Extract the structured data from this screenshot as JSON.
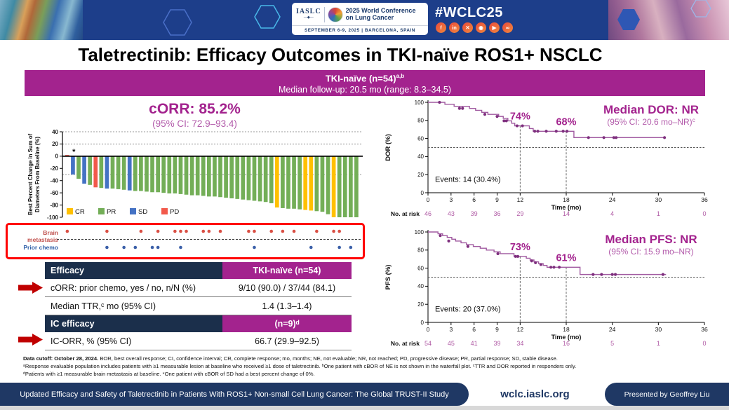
{
  "header": {
    "iaslc": "IASLC",
    "conference": "2025 World Conference on Lung Cancer",
    "date_location": "SEPTEMBER 6-9, 2025  |  BARCELONA, SPAIN",
    "hashtag": "#WCLC25",
    "social": [
      {
        "name": "facebook-icon",
        "glyph": "f"
      },
      {
        "name": "linkedin-icon",
        "glyph": "in"
      },
      {
        "name": "x-icon",
        "glyph": "✕"
      },
      {
        "name": "instagram-icon",
        "glyph": "◉"
      },
      {
        "name": "youtube-icon",
        "glyph": "▶"
      },
      {
        "name": "link-icon",
        "glyph": "∞"
      }
    ]
  },
  "title": "Taletrectinib: Efficacy Outcomes in TKI-naïve ROS1+ NSCLC",
  "banner": {
    "line1": "TKI-naïve (n=54)",
    "line1_sup": "a,b",
    "line2": "Median follow-up: 20.5 mo (range: 8.3–34.5)"
  },
  "colors": {
    "accent": "#A3238E",
    "navy_header": "#1B2F4B",
    "footer_navy": "#1F3864",
    "km_line": "#A05AA0",
    "km_censor": "#7E2F7E",
    "risk_text": "#B05BA5",
    "annotation_red": "#C00000",
    "box_red": "#FF0000"
  },
  "chart_data": [
    {
      "type": "bar",
      "name": "waterfall",
      "title": "cORR: 85.2%",
      "subtitle": "(95% CI: 72.9–93.4)",
      "ylabel_line1": "Best Percent Change in Sum of",
      "ylabel_line2": "Diameters From Baseline (%)",
      "ylim": [
        -100,
        40
      ],
      "yticks": [
        40,
        20,
        0,
        -20,
        -40,
        -60,
        -80,
        -100
      ],
      "ref_lines": [
        40,
        20,
        -30
      ],
      "star_note": "*",
      "legend": [
        {
          "label": "CR",
          "color": "#FFC000"
        },
        {
          "label": "PR",
          "color": "#73AE57"
        },
        {
          "label": "SD",
          "color": "#4472C4"
        },
        {
          "label": "PD",
          "color": "#F2594B"
        }
      ],
      "bars": [
        {
          "v": 2,
          "c": "PD"
        },
        {
          "v": -30,
          "c": "SD"
        },
        {
          "v": -37,
          "c": "PR"
        },
        {
          "v": -45,
          "c": "SD"
        },
        {
          "v": -47,
          "c": "PR"
        },
        {
          "v": -51,
          "c": "PD"
        },
        {
          "v": -52,
          "c": "PR"
        },
        {
          "v": -53,
          "c": "SD"
        },
        {
          "v": -53,
          "c": "PR"
        },
        {
          "v": -54,
          "c": "PR"
        },
        {
          "v": -55,
          "c": "PR"
        },
        {
          "v": -56,
          "c": "SD"
        },
        {
          "v": -57,
          "c": "PR"
        },
        {
          "v": -57,
          "c": "PR"
        },
        {
          "v": -58,
          "c": "PR"
        },
        {
          "v": -59,
          "c": "PR"
        },
        {
          "v": -59,
          "c": "PR"
        },
        {
          "v": -60,
          "c": "PR"
        },
        {
          "v": -61,
          "c": "PR"
        },
        {
          "v": -61,
          "c": "PR"
        },
        {
          "v": -62,
          "c": "PR"
        },
        {
          "v": -63,
          "c": "PR"
        },
        {
          "v": -64,
          "c": "PR"
        },
        {
          "v": -64,
          "c": "PR"
        },
        {
          "v": -65,
          "c": "PR"
        },
        {
          "v": -66,
          "c": "PR"
        },
        {
          "v": -66,
          "c": "PR"
        },
        {
          "v": -67,
          "c": "PR"
        },
        {
          "v": -68,
          "c": "PR"
        },
        {
          "v": -69,
          "c": "PR"
        },
        {
          "v": -70,
          "c": "PR"
        },
        {
          "v": -71,
          "c": "PR"
        },
        {
          "v": -72,
          "c": "PR"
        },
        {
          "v": -73,
          "c": "PR"
        },
        {
          "v": -74,
          "c": "PR"
        },
        {
          "v": -75,
          "c": "PR"
        },
        {
          "v": -77,
          "c": "PR"
        },
        {
          "v": -84,
          "c": "CR"
        },
        {
          "v": -85,
          "c": "PR"
        },
        {
          "v": -86,
          "c": "PR"
        },
        {
          "v": -86,
          "c": "PR"
        },
        {
          "v": -87,
          "c": "PR"
        },
        {
          "v": -88,
          "c": "CR"
        },
        {
          "v": -89,
          "c": "CR"
        },
        {
          "v": -90,
          "c": "PR"
        },
        {
          "v": -91,
          "c": "PR"
        },
        {
          "v": -95,
          "c": "PR"
        },
        {
          "v": -100,
          "c": "CR"
        },
        {
          "v": -100,
          "c": "PR"
        },
        {
          "v": -100,
          "c": "PR"
        },
        {
          "v": -100,
          "c": "PR"
        },
        {
          "v": -100,
          "c": "PR"
        }
      ]
    },
    {
      "type": "line",
      "name": "dor",
      "title": "Median DOR: NR",
      "subtitle": "(95% CI: 20.6 mo–NR)",
      "subtitle_sup": "c",
      "ylabel": "DOR (%)",
      "xlabel": "Time (mo)",
      "xlim": [
        0,
        36
      ],
      "ylim": [
        0,
        100
      ],
      "xticks": [
        0,
        3,
        6,
        9,
        12,
        18,
        24,
        30,
        36
      ],
      "yticks": [
        0,
        20,
        40,
        60,
        80,
        100
      ],
      "ref_y": 50,
      "callouts": [
        {
          "t": 12,
          "v": 74,
          "label": "74%"
        },
        {
          "t": 18,
          "v": 68,
          "label": "68%"
        }
      ],
      "events_label": "Events: 14 (30.4%)",
      "risk_label": "No. at risk",
      "risk": [
        46,
        43,
        39,
        36,
        29,
        14,
        4,
        1,
        0
      ],
      "steps": [
        [
          0,
          100
        ],
        [
          2.2,
          97.8
        ],
        [
          3.4,
          95.6
        ],
        [
          5.4,
          93.3
        ],
        [
          6.2,
          91.1
        ],
        [
          7,
          88.9
        ],
        [
          7.8,
          86.7
        ],
        [
          9.2,
          84.4
        ],
        [
          9.8,
          82.2
        ],
        [
          10.4,
          79.5
        ],
        [
          10.9,
          76.8
        ],
        [
          11.3,
          74
        ],
        [
          13.2,
          71
        ],
        [
          13.7,
          68
        ],
        [
          19,
          61
        ],
        [
          30.8,
          61
        ]
      ],
      "censors": [
        [
          1.5,
          100
        ],
        [
          4.1,
          93.3
        ],
        [
          4.5,
          93.3
        ],
        [
          7.4,
          86.7
        ],
        [
          9,
          84.4
        ],
        [
          9.9,
          79.5
        ],
        [
          10.2,
          79.5
        ],
        [
          11.6,
          74
        ],
        [
          12.3,
          74
        ],
        [
          13.9,
          68
        ],
        [
          14.3,
          68
        ],
        [
          15.4,
          68
        ],
        [
          16.7,
          68
        ],
        [
          17.6,
          68
        ],
        [
          18.1,
          68
        ],
        [
          20.9,
          61
        ],
        [
          22.9,
          61
        ],
        [
          24.2,
          61
        ],
        [
          24.5,
          61
        ],
        [
          30.8,
          61
        ]
      ]
    },
    {
      "type": "line",
      "name": "pfs",
      "title": "Median PFS: NR",
      "subtitle": "(95% CI: 15.9 mo–NR)",
      "subtitle_sup": "",
      "ylabel": "PFS (%)",
      "xlabel": "Time (mo)",
      "xlim": [
        0,
        36
      ],
      "ylim": [
        0,
        100
      ],
      "xticks": [
        0,
        3,
        6,
        9,
        12,
        18,
        24,
        30,
        36
      ],
      "yticks": [
        0,
        20,
        40,
        60,
        80,
        100
      ],
      "ref_y": 50,
      "callouts": [
        {
          "t": 12,
          "v": 73,
          "label": "73%"
        },
        {
          "t": 18,
          "v": 61,
          "label": "61%"
        }
      ],
      "events_label": "Events: 20 (37.0%)",
      "risk_label": "No. at risk",
      "risk": [
        54,
        45,
        41,
        39,
        34,
        16,
        5,
        1,
        0
      ],
      "steps": [
        [
          0,
          100
        ],
        [
          1.3,
          98
        ],
        [
          1.9,
          96
        ],
        [
          2.5,
          94
        ],
        [
          3.1,
          92
        ],
        [
          3.6,
          90
        ],
        [
          4.3,
          88
        ],
        [
          5,
          86
        ],
        [
          5.9,
          84
        ],
        [
          6.8,
          82
        ],
        [
          7.6,
          80
        ],
        [
          8.6,
          78
        ],
        [
          9.4,
          76
        ],
        [
          11.2,
          73
        ],
        [
          12.8,
          71
        ],
        [
          13.3,
          69
        ],
        [
          13.8,
          67
        ],
        [
          14.4,
          65
        ],
        [
          15,
          63
        ],
        [
          15.5,
          61
        ],
        [
          19.8,
          53
        ],
        [
          31,
          53
        ]
      ],
      "censors": [
        [
          1.6,
          96
        ],
        [
          2.7,
          90
        ],
        [
          5.2,
          84
        ],
        [
          9.1,
          76
        ],
        [
          11.4,
          73
        ],
        [
          11.7,
          73
        ],
        [
          13.5,
          68
        ],
        [
          14,
          66
        ],
        [
          14.7,
          64
        ],
        [
          16,
          61
        ],
        [
          16.4,
          61
        ],
        [
          17.1,
          61
        ],
        [
          21.5,
          53
        ],
        [
          22.6,
          53
        ],
        [
          24,
          53
        ],
        [
          24.4,
          53
        ],
        [
          30.6,
          53
        ]
      ]
    }
  ],
  "markers": {
    "brain_label": "Brain metastasis",
    "chemo_label": "Prior chemo",
    "brain_dots": [
      1,
      8,
      14,
      17,
      20,
      21,
      22,
      25,
      26,
      28,
      33,
      34,
      37,
      39,
      41,
      45,
      48,
      49
    ],
    "chemo_dots": [
      8,
      11,
      13,
      16,
      17,
      21,
      34,
      44,
      49,
      51
    ]
  },
  "table": {
    "rows": [
      {
        "type": "header",
        "label": "Efficacy",
        "value": "TKI-naïve (n=54)"
      },
      {
        "type": "data",
        "label": "cORR: prior chemo, yes / no, n/N (%)",
        "value": "9/10 (90.0) / 37/44 (84.1)"
      },
      {
        "type": "data",
        "label": "Median TTR,ᶜ mo (95% CI)",
        "value": "1.4 (1.3–1.4)"
      },
      {
        "type": "header",
        "label": "IC efficacy",
        "value": "(n=9)ᵈ"
      },
      {
        "type": "data",
        "label": "IC-ORR, % (95% CI)",
        "value": "66.7 (29.9–92.5)"
      }
    ]
  },
  "footnotes": {
    "line1_bold": "Data cutoff: October 28, 2024.",
    "line1_rest": " BOR, best overall response; CI, confidence interval; CR, complete response; mo, months; NE, not evaluable; NR, not reached; PD, progressive disease; PR, partial response; SD, stable disease.",
    "line2": "ᵃResponse evaluable population includes patients with ≥1 measurable lesion at baseline who received ≥1 dose of taletrectinib. ᵇOne patient with cBOR of NE is not shown in the waterfall plot. ᶜTTR and DOR reported in responders only.",
    "line3": "ᵈPatients with ≥1 measurable brain metastasis at baseline. *One patient with cBOR of SD had a best percent change of 0%."
  },
  "footer": {
    "left": "Updated Efficacy and Safety of Taletrectinib in Patients With ROS1+ Non-small Cell Lung Cancer: The Global TRUST-II Study",
    "center": "wclc.iaslc.org",
    "right": "Presented by Geoffrey Liu"
  }
}
